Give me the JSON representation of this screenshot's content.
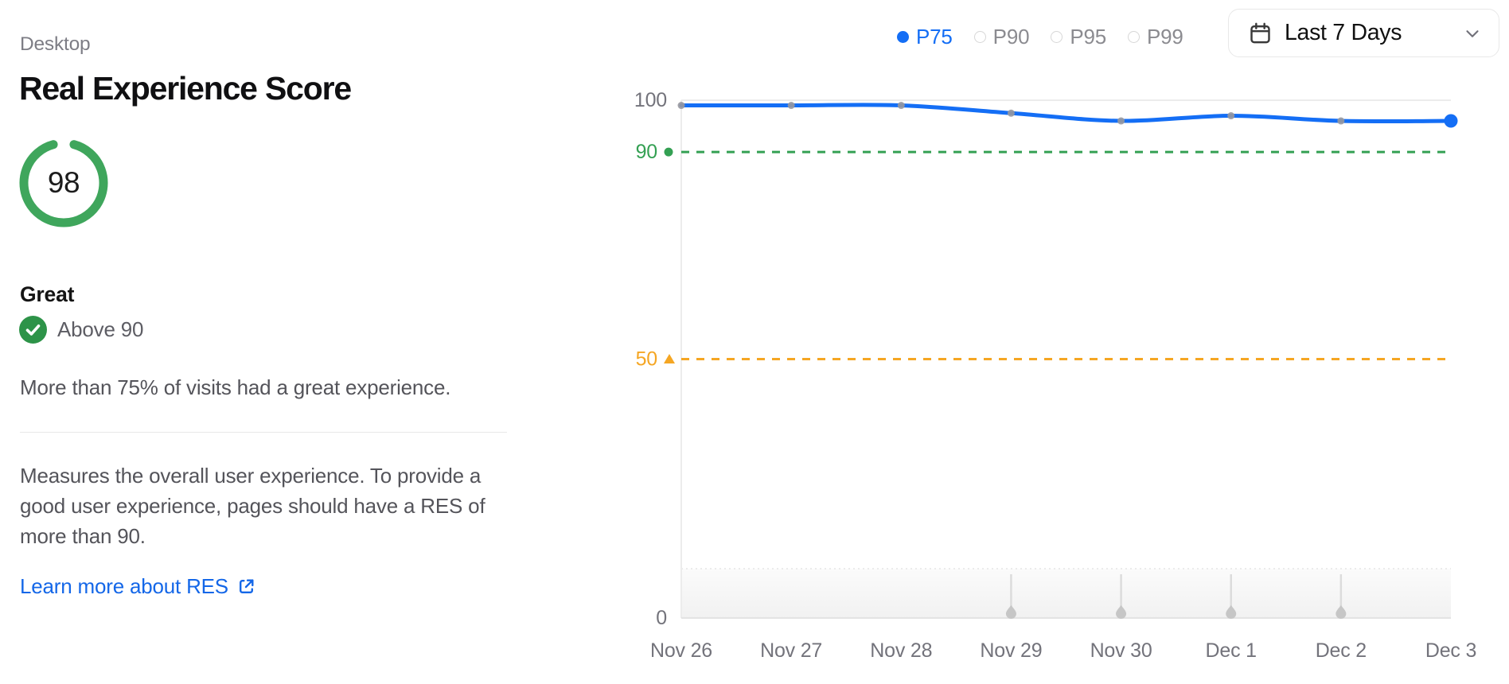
{
  "panel": {
    "device_label": "Desktop",
    "title": "Real Experience Score",
    "score": "98",
    "rating": "Great",
    "threshold": "Above 90",
    "summary": "More than 75% of visits had a great experience.",
    "description": "Measures the overall user experience. To provide a good user experience, pages should have a RES of more than 90.",
    "link_label": "Learn more about RES"
  },
  "controls": {
    "percentiles": [
      {
        "label": "P75",
        "selected": true
      },
      {
        "label": "P90",
        "selected": false
      },
      {
        "label": "P95",
        "selected": false
      },
      {
        "label": "P99",
        "selected": false
      }
    ],
    "date_range_label": "Last 7 Days",
    "date_range_icon": "calendar-icon",
    "date_range_chevron": "chevron-down-icon"
  },
  "colors": {
    "accent_blue": "#146ef5",
    "green": "#34a053",
    "ring_green": "#3fa65c",
    "badge_green": "#2d9348",
    "orange": "#f5a623",
    "axis_text": "#73737b",
    "grid": "#ececec",
    "point_gray": "#98989e",
    "marker_gray": "#c6c6c6"
  },
  "chart_data": {
    "type": "line",
    "title": "Real Experience Score over time",
    "x": [
      "Nov 26",
      "Nov 27",
      "Nov 28",
      "Nov 29",
      "Nov 30",
      "Dec 1",
      "Dec 2",
      "Dec 3"
    ],
    "series": [
      {
        "name": "P75",
        "color": "#146ef5",
        "values": [
          99,
          99,
          99,
          97.5,
          96,
          97,
          96,
          96
        ]
      }
    ],
    "ylim": [
      0,
      100
    ],
    "yticks": [
      {
        "value": 100,
        "label": "100",
        "color": "#73737b",
        "marker": null
      },
      {
        "value": 90,
        "label": "90",
        "color": "#34a053",
        "marker": "dot"
      },
      {
        "value": 50,
        "label": "50",
        "color": "#f5a623",
        "marker": "triangle"
      },
      {
        "value": 0,
        "label": "0",
        "color": "#73737b",
        "marker": null
      }
    ],
    "reference_lines": [
      {
        "value": 90,
        "color": "#34a053",
        "style": "dashed",
        "name": "great-threshold"
      },
      {
        "value": 50,
        "color": "#f5a623",
        "style": "dashed",
        "name": "poor-threshold"
      }
    ],
    "deployment_markers": [
      "Nov 29",
      "Nov 30",
      "Dec 1",
      "Dec 2"
    ],
    "grid": "top-gridline-only",
    "legend_position": "top-right"
  }
}
